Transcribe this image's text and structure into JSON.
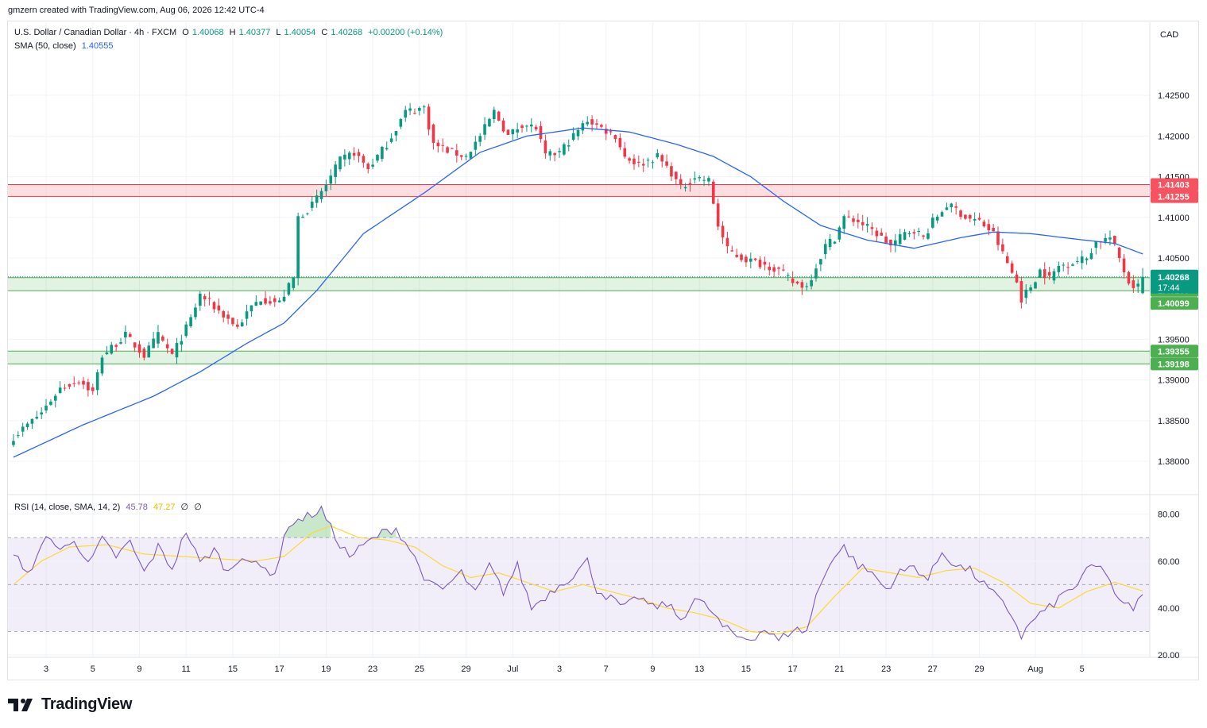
{
  "header": {
    "creator": "gmzern created with TradingView.com, Aug 06, 2026 12:42 UTC-4"
  },
  "legend": {
    "symbol": "U.S. Dollar / Canadian Dollar · 4h · FXCM",
    "o_label": "O",
    "o": "1.40068",
    "h_label": "H",
    "h": "1.40377",
    "l_label": "L",
    "l": "1.40054",
    "c_label": "C",
    "c": "1.40268",
    "change": "+0.00200 (+0.14%)",
    "sma_label": "SMA (50, close)",
    "sma_value": "1.40555",
    "rsi_label": "RSI (14, close, SMA, 14, 2)",
    "rsi_value": "45.78",
    "rsi_ma_value": "47.27",
    "rsi_extra1": "∅",
    "rsi_extra2": "∅"
  },
  "currency": "CAD",
  "colors": {
    "up": "#089981",
    "down": "#f23645",
    "sma": "#2962ff",
    "rsi": "#7e57c2",
    "rsi_ma": "#fdd835",
    "resistance_zone": "#f23645",
    "support_zone": "#4caf50",
    "grid": "#f0f3fa"
  },
  "branding": {
    "logo_text": "TradingView"
  },
  "chart_data": [
    {
      "type": "candlestick",
      "symbol": "USDCAD",
      "timeframe": "4h",
      "ylim": [
        1.376,
        1.434
      ],
      "y_ticks": [
        "1.42500",
        "1.42000",
        "1.41500",
        "1.41000",
        "1.40500",
        "1.39500",
        "1.39000",
        "1.38500",
        "1.38000"
      ],
      "x_ticks": [
        {
          "label": "3",
          "i": 7
        },
        {
          "label": "5",
          "i": 17
        },
        {
          "label": "9",
          "i": 27
        },
        {
          "label": "11",
          "i": 37
        },
        {
          "label": "15",
          "i": 47
        },
        {
          "label": "17",
          "i": 57
        },
        {
          "label": "19",
          "i": 67
        },
        {
          "label": "23",
          "i": 77
        },
        {
          "label": "25",
          "i": 87
        },
        {
          "label": "29",
          "i": 97
        },
        {
          "label": "Jul",
          "i": 107
        },
        {
          "label": "3",
          "i": 117
        },
        {
          "label": "7",
          "i": 127
        },
        {
          "label": "9",
          "i": 137
        },
        {
          "label": "13",
          "i": 147
        },
        {
          "label": "15",
          "i": 157
        },
        {
          "label": "17",
          "i": 167
        },
        {
          "label": "21",
          "i": 177
        },
        {
          "label": "23",
          "i": 187
        },
        {
          "label": "27",
          "i": 197
        },
        {
          "label": "29",
          "i": 207
        },
        {
          "label": "Aug",
          "i": 219
        },
        {
          "label": "5",
          "i": 229
        }
      ],
      "close_anchors": [
        [
          0,
          1.383
        ],
        [
          6,
          1.386
        ],
        [
          10,
          1.389
        ],
        [
          14,
          1.39
        ],
        [
          17,
          1.3885
        ],
        [
          19,
          1.393
        ],
        [
          24,
          1.3955
        ],
        [
          28,
          1.393
        ],
        [
          31,
          1.3955
        ],
        [
          34,
          1.393
        ],
        [
          38,
          1.3975
        ],
        [
          40,
          1.4005
        ],
        [
          44,
          1.3985
        ],
        [
          48,
          1.3965
        ],
        [
          51,
          1.399
        ],
        [
          53,
          1.4
        ],
        [
          57,
          1.3995
        ],
        [
          60,
          1.4025
        ],
        [
          61,
          1.41
        ],
        [
          64,
          1.4115
        ],
        [
          67,
          1.414
        ],
        [
          70,
          1.417
        ],
        [
          73,
          1.418
        ],
        [
          76,
          1.416
        ],
        [
          80,
          1.419
        ],
        [
          84,
          1.423
        ],
        [
          88,
          1.4235
        ],
        [
          90,
          1.419
        ],
        [
          94,
          1.418
        ],
        [
          97,
          1.4175
        ],
        [
          100,
          1.42
        ],
        [
          103,
          1.423
        ],
        [
          106,
          1.42
        ],
        [
          109,
          1.4215
        ],
        [
          112,
          1.421
        ],
        [
          114,
          1.4175
        ],
        [
          117,
          1.418
        ],
        [
          120,
          1.42
        ],
        [
          123,
          1.422
        ],
        [
          126,
          1.421
        ],
        [
          129,
          1.42
        ],
        [
          131,
          1.4175
        ],
        [
          134,
          1.4165
        ],
        [
          138,
          1.4175
        ],
        [
          141,
          1.4155
        ],
        [
          143,
          1.4135
        ],
        [
          146,
          1.415
        ],
        [
          149,
          1.4145
        ],
        [
          151,
          1.409
        ],
        [
          153,
          1.406
        ],
        [
          156,
          1.405
        ],
        [
          159,
          1.4045
        ],
        [
          162,
          1.404
        ],
        [
          164,
          1.4035
        ],
        [
          167,
          1.402
        ],
        [
          170,
          1.4015
        ],
        [
          172,
          1.404
        ],
        [
          174,
          1.4065
        ],
        [
          176,
          1.4075
        ],
        [
          178,
          1.41
        ],
        [
          181,
          1.4095
        ],
        [
          185,
          1.408
        ],
        [
          188,
          1.4065
        ],
        [
          191,
          1.408
        ],
        [
          193,
          1.4085
        ],
        [
          195,
          1.4075
        ],
        [
          197,
          1.4095
        ],
        [
          200,
          1.4115
        ],
        [
          202,
          1.411
        ],
        [
          204,
          1.41
        ],
        [
          207,
          1.4095
        ],
        [
          210,
          1.408
        ],
        [
          212,
          1.4055
        ],
        [
          215,
          1.402
        ],
        [
          216,
          1.4
        ],
        [
          218,
          1.4015
        ],
        [
          220,
          1.4035
        ],
        [
          222,
          1.4025
        ],
        [
          224,
          1.404
        ],
        [
          227,
          1.4045
        ],
        [
          230,
          1.405
        ],
        [
          232,
          1.407
        ],
        [
          235,
          1.4075
        ],
        [
          237,
          1.405
        ],
        [
          239,
          1.402
        ],
        [
          241,
          1.4015
        ],
        [
          242,
          1.4027
        ]
      ],
      "last_candle": {
        "open": 1.40068,
        "high": 1.40377,
        "low": 1.40054,
        "close": 1.40268
      },
      "sma": {
        "name": "SMA (50, close)",
        "anchors": [
          [
            0,
            1.3805
          ],
          [
            15,
            1.3845
          ],
          [
            30,
            1.388
          ],
          [
            40,
            1.391
          ],
          [
            50,
            1.3945
          ],
          [
            58,
            1.397
          ],
          [
            65,
            1.401
          ],
          [
            75,
            1.408
          ],
          [
            88,
            1.413
          ],
          [
            100,
            1.418
          ],
          [
            110,
            1.42
          ],
          [
            122,
            1.421
          ],
          [
            132,
            1.4205
          ],
          [
            142,
            1.419
          ],
          [
            150,
            1.4175
          ],
          [
            158,
            1.415
          ],
          [
            165,
            1.412
          ],
          [
            173,
            1.409
          ],
          [
            183,
            1.4072
          ],
          [
            193,
            1.4062
          ],
          [
            203,
            1.4075
          ],
          [
            210,
            1.4082
          ],
          [
            218,
            1.408
          ],
          [
            228,
            1.4073
          ],
          [
            236,
            1.4068
          ],
          [
            242,
            1.4055
          ]
        ]
      },
      "zones": [
        {
          "kind": "resistance",
          "top": 1.41403,
          "bottom": 1.41255,
          "top_label": "1.41403",
          "bottom_label": "1.41255"
        },
        {
          "kind": "support",
          "top": 1.40258,
          "bottom": 1.40099,
          "top_label": "1.40258",
          "bottom_label": "1.40099"
        },
        {
          "kind": "support",
          "top": 1.39355,
          "bottom": 1.39198,
          "top_label": "1.39355",
          "bottom_label": "1.39198"
        }
      ],
      "last_price_label": {
        "price": "1.40268",
        "countdown": "17:44",
        "value": 1.40268
      }
    },
    {
      "type": "line",
      "name": "RSI (14, close, SMA, 14, 2)",
      "ylim": [
        19,
        88
      ],
      "y_ticks": [
        "80.00",
        "60.00",
        "40.00",
        "20.00"
      ],
      "bands": {
        "upper": 70,
        "middle": 50,
        "lower": 30
      },
      "rsi_anchors": [
        [
          0,
          62
        ],
        [
          4,
          55
        ],
        [
          7,
          72
        ],
        [
          10,
          64
        ],
        [
          13,
          70
        ],
        [
          16,
          58
        ],
        [
          19,
          69
        ],
        [
          22,
          62
        ],
        [
          25,
          68
        ],
        [
          28,
          55
        ],
        [
          31,
          66
        ],
        [
          34,
          57
        ],
        [
          37,
          73
        ],
        [
          40,
          59
        ],
        [
          43,
          65
        ],
        [
          46,
          55
        ],
        [
          49,
          63
        ],
        [
          52,
          58
        ],
        [
          56,
          55
        ],
        [
          59,
          76
        ],
        [
          62,
          78
        ],
        [
          66,
          82
        ],
        [
          69,
          70
        ],
        [
          72,
          62
        ],
        [
          76,
          68
        ],
        [
          79,
          72
        ],
        [
          82,
          74
        ],
        [
          85,
          65
        ],
        [
          89,
          50
        ],
        [
          92,
          48
        ],
        [
          96,
          55
        ],
        [
          99,
          46
        ],
        [
          102,
          58
        ],
        [
          105,
          47
        ],
        [
          108,
          58
        ],
        [
          111,
          40
        ],
        [
          114,
          45
        ],
        [
          117,
          50
        ],
        [
          120,
          54
        ],
        [
          123,
          60
        ],
        [
          125,
          48
        ],
        [
          128,
          44
        ],
        [
          131,
          40
        ],
        [
          134,
          45
        ],
        [
          137,
          40
        ],
        [
          140,
          42
        ],
        [
          143,
          35
        ],
        [
          146,
          44
        ],
        [
          149,
          40
        ],
        [
          152,
          32
        ],
        [
          155,
          28
        ],
        [
          158,
          27
        ],
        [
          161,
          31
        ],
        [
          164,
          26
        ],
        [
          167,
          31
        ],
        [
          170,
          30
        ],
        [
          172,
          45
        ],
        [
          175,
          60
        ],
        [
          178,
          66
        ],
        [
          181,
          58
        ],
        [
          184,
          55
        ],
        [
          187,
          48
        ],
        [
          190,
          55
        ],
        [
          193,
          58
        ],
        [
          196,
          52
        ],
        [
          199,
          64
        ],
        [
          202,
          58
        ],
        [
          205,
          56
        ],
        [
          208,
          50
        ],
        [
          211,
          44
        ],
        [
          214,
          37
        ],
        [
          216,
          28
        ],
        [
          219,
          36
        ],
        [
          222,
          40
        ],
        [
          225,
          46
        ],
        [
          228,
          50
        ],
        [
          231,
          58
        ],
        [
          234,
          56
        ],
        [
          237,
          42
        ],
        [
          240,
          40
        ],
        [
          242,
          45.78
        ]
      ],
      "rsi_ma_anchors": [
        [
          0,
          50
        ],
        [
          6,
          60
        ],
        [
          12,
          66
        ],
        [
          20,
          67
        ],
        [
          28,
          63
        ],
        [
          36,
          62
        ],
        [
          44,
          61
        ],
        [
          52,
          60
        ],
        [
          58,
          62
        ],
        [
          64,
          72
        ],
        [
          68,
          75
        ],
        [
          74,
          70
        ],
        [
          80,
          69
        ],
        [
          86,
          66
        ],
        [
          92,
          58
        ],
        [
          98,
          53
        ],
        [
          104,
          55
        ],
        [
          110,
          51
        ],
        [
          116,
          47
        ],
        [
          122,
          50
        ],
        [
          128,
          47
        ],
        [
          134,
          44
        ],
        [
          140,
          40
        ],
        [
          146,
          38
        ],
        [
          152,
          35
        ],
        [
          158,
          30
        ],
        [
          164,
          29
        ],
        [
          170,
          32
        ],
        [
          176,
          45
        ],
        [
          182,
          57
        ],
        [
          188,
          55
        ],
        [
          194,
          53
        ],
        [
          200,
          56
        ],
        [
          206,
          57
        ],
        [
          212,
          51
        ],
        [
          218,
          42
        ],
        [
          224,
          40
        ],
        [
          230,
          47
        ],
        [
          236,
          51
        ],
        [
          242,
          47.27
        ]
      ]
    }
  ]
}
